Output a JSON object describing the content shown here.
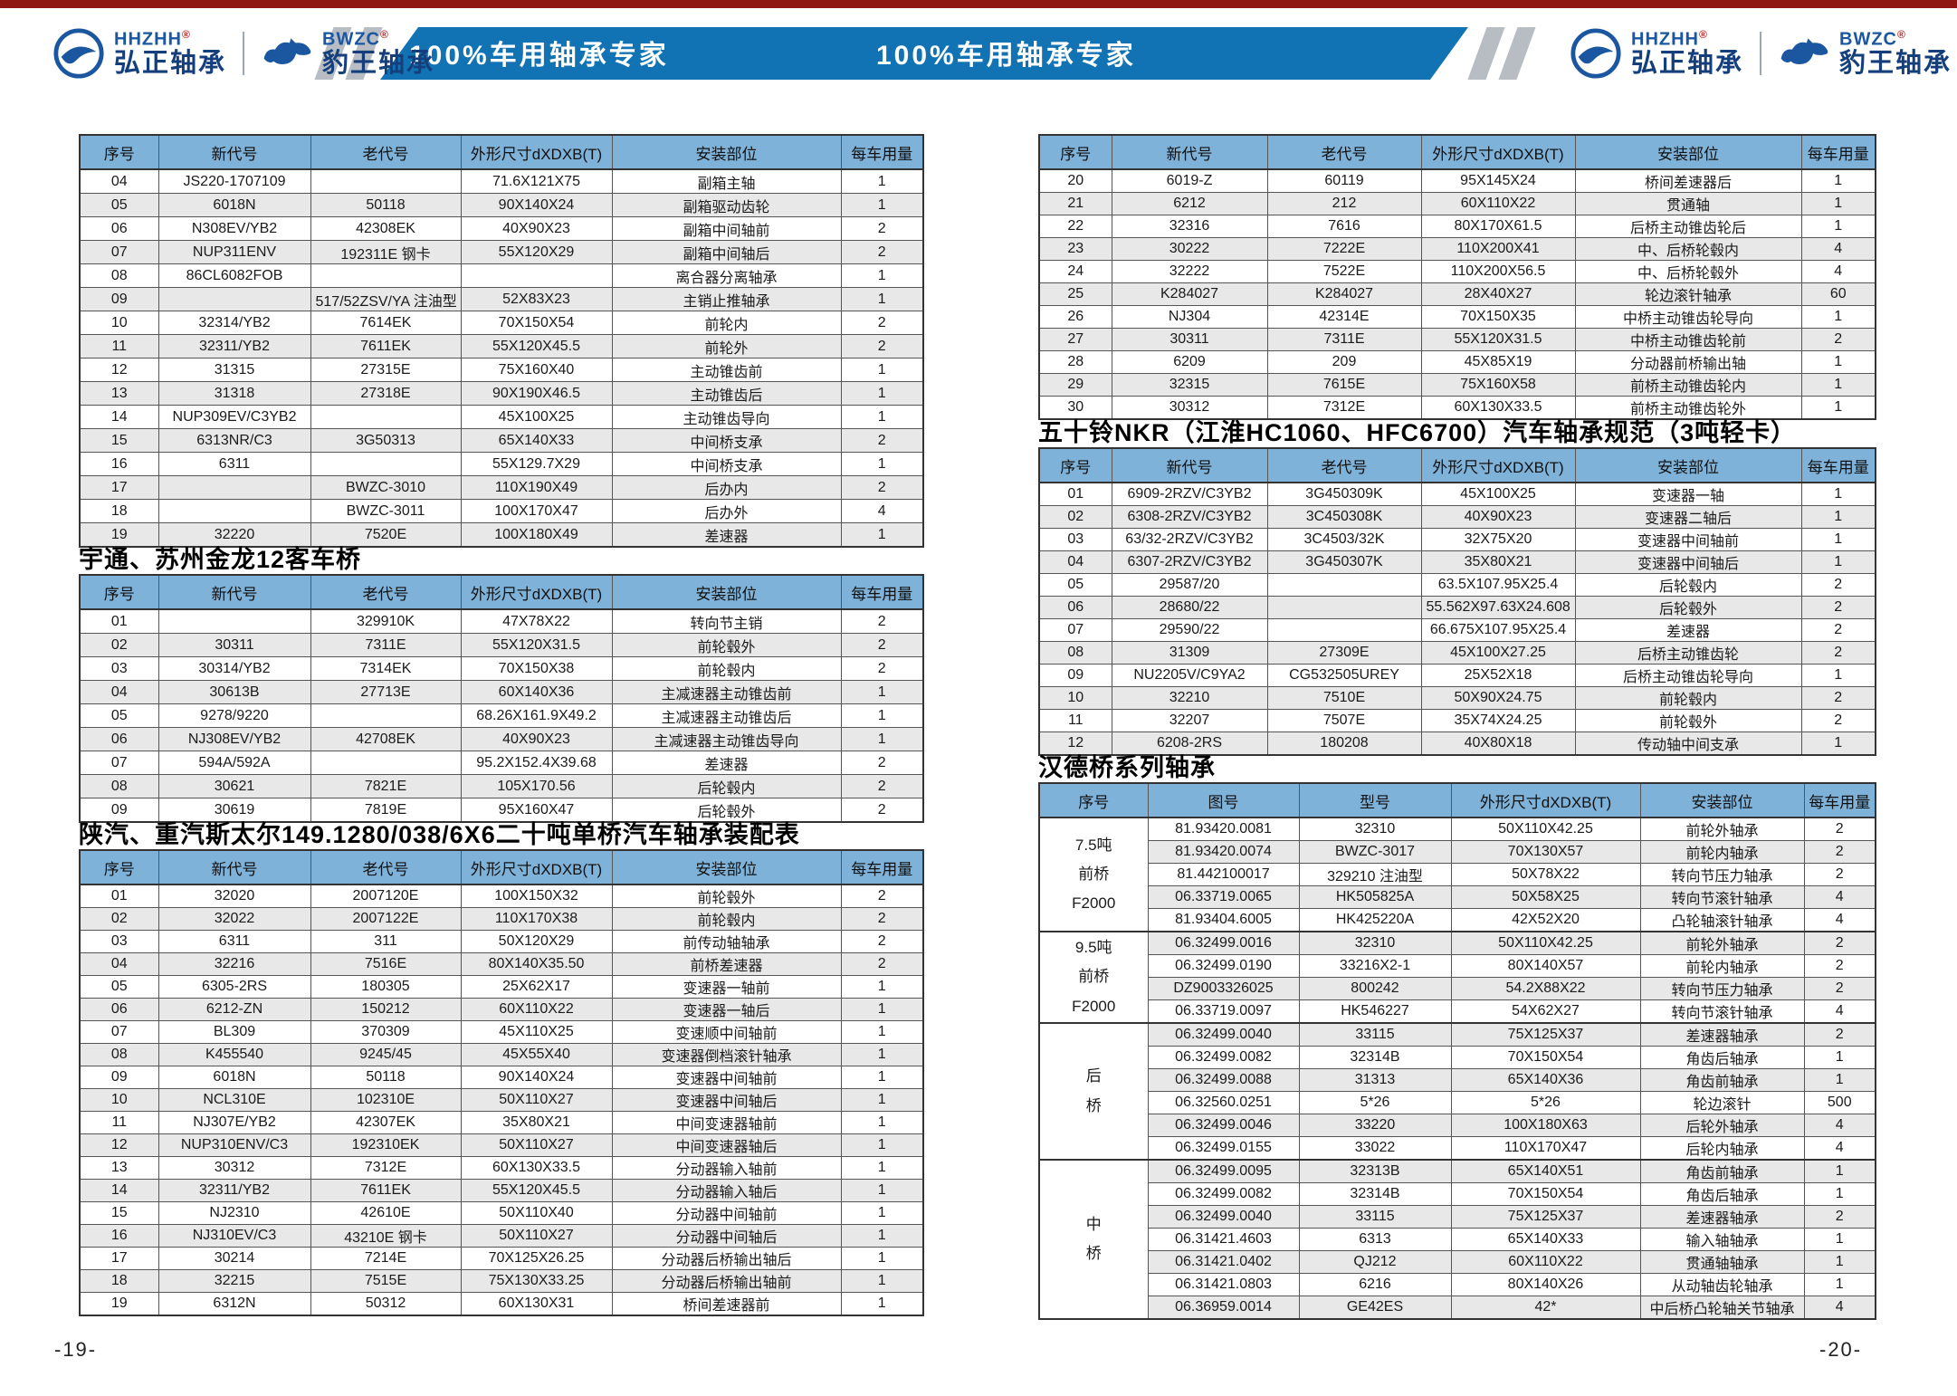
{
  "header": {
    "tagline_left": "100%车用轴承专家",
    "tagline_right": "100%车用轴承专家",
    "brand1": {
      "abbr": "HHZHH",
      "reg": "®",
      "name": "弘正轴承"
    },
    "brand2": {
      "abbr": "BWZC",
      "reg": "®",
      "name": "豹王轴承"
    }
  },
  "columns6": [
    "序号",
    "新代号",
    "老代号",
    "外形尺寸dXDXB(T)",
    "安装部位",
    "每车用量"
  ],
  "columns_hande": [
    "序号",
    "图号",
    "型号",
    "外形尺寸dXDXB(T)",
    "安装部位",
    "每车用量"
  ],
  "tables": {
    "t1": {
      "rows": [
        [
          "04",
          "JS220-1707109",
          "",
          "71.6X121X75",
          "副箱主轴",
          "1"
        ],
        [
          "05",
          "6018N",
          "50118",
          "90X140X24",
          "副箱驱动齿轮",
          "1"
        ],
        [
          "06",
          "N308EV/YB2",
          "42308EK",
          "40X90X23",
          "副箱中间轴前",
          "2"
        ],
        [
          "07",
          "NUP311ENV",
          "192311E 钢卡",
          "55X120X29",
          "副箱中间轴后",
          "2"
        ],
        [
          "08",
          "86CL6082FOB",
          "",
          "",
          "离合器分离轴承",
          "1"
        ],
        [
          "09",
          "",
          "517/52ZSV/YA 注油型",
          "52X83X23",
          "主销止推轴承",
          "1"
        ],
        [
          "10",
          "32314/YB2",
          "7614EK",
          "70X150X54",
          "前轮内",
          "2"
        ],
        [
          "11",
          "32311/YB2",
          "7611EK",
          "55X120X45.5",
          "前轮外",
          "2"
        ],
        [
          "12",
          "31315",
          "27315E",
          "75X160X40",
          "主动锥齿前",
          "1"
        ],
        [
          "13",
          "31318",
          "27318E",
          "90X190X46.5",
          "主动锥齿后",
          "1"
        ],
        [
          "14",
          "NUP309EV/C3YB2",
          "",
          "45X100X25",
          "主动锥齿导向",
          "1"
        ],
        [
          "15",
          "6313NR/C3",
          "3G50313",
          "65X140X33",
          "中间桥支承",
          "2"
        ],
        [
          "16",
          "6311",
          "",
          "55X129.7X29",
          "中间桥支承",
          "1"
        ],
        [
          "17",
          "",
          "BWZC-3010",
          "110X190X49",
          "后办内",
          "2"
        ],
        [
          "18",
          "",
          "BWZC-3011",
          "100X170X47",
          "后办外",
          "4"
        ],
        [
          "19",
          "32220",
          "7520E",
          "100X180X49",
          "差速器",
          "1"
        ]
      ]
    },
    "t2": {
      "title": "宇通、苏州金龙12客车桥",
      "rows": [
        [
          "01",
          "",
          "329910K",
          "47X78X22",
          "转向节主销",
          "2"
        ],
        [
          "02",
          "30311",
          "7311E",
          "55X120X31.5",
          "前轮毂外",
          "2"
        ],
        [
          "03",
          "30314/YB2",
          "7314EK",
          "70X150X38",
          "前轮毂内",
          "2"
        ],
        [
          "04",
          "30613B",
          "27713E",
          "60X140X36",
          "主减速器主动锥齿前",
          "1"
        ],
        [
          "05",
          "9278/9220",
          "",
          "68.26X161.9X49.2",
          "主减速器主动锥齿后",
          "1"
        ],
        [
          "06",
          "NJ308EV/YB2",
          "42708EK",
          "40X90X23",
          "主减速器主动锥齿导向",
          "1"
        ],
        [
          "07",
          "594A/592A",
          "",
          "95.2X152.4X39.68",
          "差速器",
          "2"
        ],
        [
          "08",
          "30621",
          "7821E",
          "105X170.56",
          "后轮毂内",
          "2"
        ],
        [
          "09",
          "30619",
          "7819E",
          "95X160X47",
          "后轮毂外",
          "2"
        ]
      ]
    },
    "t3": {
      "title": "陕汽、重汽斯太尔149.1280/038/6X6二十吨单桥汽车轴承装配表",
      "rows": [
        [
          "01",
          "32020",
          "2007120E",
          "100X150X32",
          "前轮毂外",
          "2"
        ],
        [
          "02",
          "32022",
          "2007122E",
          "110X170X38",
          "前轮毂内",
          "2"
        ],
        [
          "03",
          "6311",
          "311",
          "50X120X29",
          "前传动轴轴承",
          "2"
        ],
        [
          "04",
          "32216",
          "7516E",
          "80X140X35.50",
          "前桥差速器",
          "2"
        ],
        [
          "05",
          "6305-2RS",
          "180305",
          "25X62X17",
          "变速器一轴前",
          "1"
        ],
        [
          "06",
          "6212-ZN",
          "150212",
          "60X110X22",
          "变速器一轴后",
          "1"
        ],
        [
          "07",
          "BL309",
          "370309",
          "45X110X25",
          "变速顺中间轴前",
          "1"
        ],
        [
          "08",
          "K455540",
          "9245/45",
          "45X55X40",
          "变速器倒档滚针轴承",
          "1"
        ],
        [
          "09",
          "6018N",
          "50118",
          "90X140X24",
          "变速器中间轴前",
          "1"
        ],
        [
          "10",
          "NCL310E",
          "102310E",
          "50X110X27",
          "变速器中间轴后",
          "1"
        ],
        [
          "11",
          "NJ307E/YB2",
          "42307EK",
          "35X80X21",
          "中间变速器轴前",
          "1"
        ],
        [
          "12",
          "NUP310ENV/C3",
          "192310EK",
          "50X110X27",
          "中间变速器轴后",
          "1"
        ],
        [
          "13",
          "30312",
          "7312E",
          "60X130X33.5",
          "分动器输入轴前",
          "1"
        ],
        [
          "14",
          "32311/YB2",
          "7611EK",
          "55X120X45.5",
          "分动器输入轴后",
          "1"
        ],
        [
          "15",
          "NJ2310",
          "42610E",
          "50X110X40",
          "分动器中间轴前",
          "1"
        ],
        [
          "16",
          "NJ310EV/C3",
          "43210E 钢卡",
          "50X110X27",
          "分动器中间轴后",
          "1"
        ],
        [
          "17",
          "30214",
          "7214E",
          "70X125X26.25",
          "分动器后桥输出轴后",
          "1"
        ],
        [
          "18",
          "32215",
          "7515E",
          "75X130X33.25",
          "分动器后桥输出轴前",
          "1"
        ],
        [
          "19",
          "6312N",
          "50312",
          "60X130X31",
          "桥间差速器前",
          "1"
        ]
      ]
    },
    "t4": {
      "rows": [
        [
          "20",
          "6019-Z",
          "60119",
          "95X145X24",
          "桥间差速器后",
          "1"
        ],
        [
          "21",
          "6212",
          "212",
          "60X110X22",
          "贯通轴",
          "1"
        ],
        [
          "22",
          "32316",
          "7616",
          "80X170X61.5",
          "后桥主动锥齿轮后",
          "1"
        ],
        [
          "23",
          "30222",
          "7222E",
          "110X200X41",
          "中、后桥轮毂内",
          "4"
        ],
        [
          "24",
          "32222",
          "7522E",
          "110X200X56.5",
          "中、后桥轮毂外",
          "4"
        ],
        [
          "25",
          "K284027",
          "K284027",
          "28X40X27",
          "轮边滚针轴承",
          "60"
        ],
        [
          "26",
          "NJ304",
          "42314E",
          "70X150X35",
          "中桥主动锥齿轮导向",
          "1"
        ],
        [
          "27",
          "30311",
          "7311E",
          "55X120X31.5",
          "中桥主动锥齿轮前",
          "2"
        ],
        [
          "28",
          "6209",
          "209",
          "45X85X19",
          "分动器前桥输出轴",
          "1"
        ],
        [
          "29",
          "32315",
          "7615E",
          "75X160X58",
          "前桥主动锥齿轮内",
          "1"
        ],
        [
          "30",
          "30312",
          "7312E",
          "60X130X33.5",
          "前桥主动锥齿轮外",
          "1"
        ]
      ]
    },
    "t5": {
      "title": "五十铃NKR（江淮HC1060、HFC6700）汽车轴承规范（3吨轻卡）",
      "rows": [
        [
          "01",
          "6909-2RZV/C3YB2",
          "3G450309K",
          "45X100X25",
          "变速器一轴",
          "1"
        ],
        [
          "02",
          "6308-2RZV/C3YB2",
          "3C450308K",
          "40X90X23",
          "变速器二轴后",
          "1"
        ],
        [
          "03",
          "63/32-2RZV/C3YB2",
          "3C4503/32K",
          "32X75X20",
          "变速器中间轴前",
          "1"
        ],
        [
          "04",
          "6307-2RZV/C3YB2",
          "3G450307K",
          "35X80X21",
          "变速器中间轴后",
          "1"
        ],
        [
          "05",
          "29587/20",
          "",
          "63.5X107.95X25.4",
          "后轮毂内",
          "2"
        ],
        [
          "06",
          "28680/22",
          "",
          "55.562X97.63X24.608",
          "后轮毂外",
          "2"
        ],
        [
          "07",
          "29590/22",
          "",
          "66.675X107.95X25.4",
          "差速器",
          "2"
        ],
        [
          "08",
          "31309",
          "27309E",
          "45X100X27.25",
          "后桥主动锥齿轮",
          "2"
        ],
        [
          "09",
          "NU2205V/C9YA2",
          "CG532505UREY",
          "25X52X18",
          "后桥主动锥齿轮导向",
          "1"
        ],
        [
          "10",
          "32210",
          "7510E",
          "50X90X24.75",
          "前轮毂内",
          "2"
        ],
        [
          "11",
          "32207",
          "7507E",
          "35X74X24.25",
          "前轮毂外",
          "2"
        ],
        [
          "12",
          "6208-2RS",
          "180208",
          "40X80X18",
          "传动轴中间支承",
          "1"
        ]
      ]
    },
    "t6": {
      "title": "汉德桥系列轴承",
      "groups": [
        {
          "label_lines": [
            "7.5吨",
            "前桥",
            "F2000"
          ],
          "rows": [
            [
              "81.93420.0081",
              "32310",
              "50X110X42.25",
              "前轮外轴承",
              "2"
            ],
            [
              "81.93420.0074",
              "BWZC-3017",
              "70X130X57",
              "前轮内轴承",
              "2"
            ],
            [
              "81.442100017",
              "329210 注油型",
              "50X78X22",
              "转向节压力轴承",
              "2"
            ],
            [
              "06.33719.0065",
              "HK505825A",
              "50X58X25",
              "转向节滚针轴承",
              "4"
            ],
            [
              "81.93404.6005",
              "HK425220A",
              "42X52X20",
              "凸轮轴滚针轴承",
              "4"
            ]
          ]
        },
        {
          "label_lines": [
            "9.5吨",
            "前桥",
            "F2000"
          ],
          "rows": [
            [
              "06.32499.0016",
              "32310",
              "50X110X42.25",
              "前轮外轴承",
              "2"
            ],
            [
              "06.32499.0190",
              "33216X2-1",
              "80X140X57",
              "前轮内轴承",
              "2"
            ],
            [
              "DZ9003326025",
              "800242",
              "54.2X88X22",
              "转向节压力轴承",
              "2"
            ],
            [
              "06.33719.0097",
              "HK546227",
              "54X62X27",
              "转向节滚针轴承",
              "4"
            ]
          ]
        },
        {
          "label_lines": [
            "后",
            "桥"
          ],
          "rows": [
            [
              "06.32499.0040",
              "33115",
              "75X125X37",
              "差速器轴承",
              "2"
            ],
            [
              "06.32499.0082",
              "32314B",
              "70X150X54",
              "角齿后轴承",
              "1"
            ],
            [
              "06.32499.0088",
              "31313",
              "65X140X36",
              "角齿前轴承",
              "1"
            ],
            [
              "06.32560.0251",
              "5*26",
              "5*26",
              "轮边滚针",
              "500"
            ],
            [
              "06.32499.0046",
              "33220",
              "100X180X63",
              "后轮外轴承",
              "4"
            ],
            [
              "06.32499.0155",
              "33022",
              "110X170X47",
              "后轮内轴承",
              "4"
            ]
          ]
        },
        {
          "label_lines": [
            "中",
            "桥"
          ],
          "rows": [
            [
              "06.32499.0095",
              "32313B",
              "65X140X51",
              "角齿前轴承",
              "1"
            ],
            [
              "06.32499.0082",
              "32314B",
              "70X150X54",
              "角齿后轴承",
              "1"
            ],
            [
              "06.32499.0040",
              "33115",
              "75X125X37",
              "差速器轴承",
              "2"
            ],
            [
              "06.31421.4603",
              "6313",
              "65X140X33",
              "输入轴轴承",
              "1"
            ],
            [
              "06.31421.0402",
              "QJ212",
              "60X110X22",
              "贯通轴轴承",
              "1"
            ],
            [
              "06.31421.0803",
              "6216",
              "80X140X26",
              "从动轴齿轮轴承",
              "1"
            ],
            [
              "06.36959.0014",
              "GE42ES",
              "42*",
              "中后桥凸轮轴关节轴承",
              "4"
            ]
          ]
        }
      ]
    }
  },
  "footer": {
    "page_left": "-19-",
    "page_right": "-20-"
  }
}
